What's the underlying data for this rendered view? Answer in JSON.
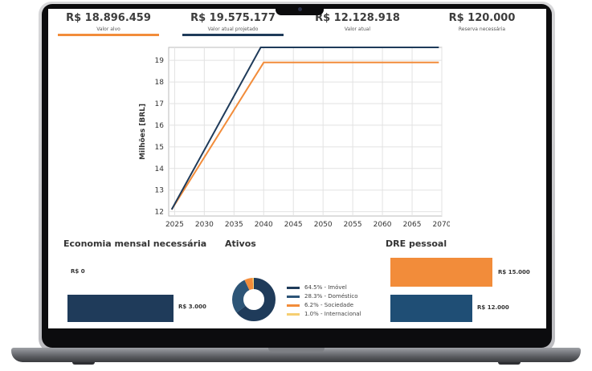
{
  "kpis": [
    {
      "value": "R$ 18.896.459",
      "label": "Valor alvo",
      "color": "#f28c3a"
    },
    {
      "value": "R$ 19.575.177",
      "label": "Valor atual projetado",
      "color": "#1f3b5a"
    },
    {
      "value": "R$ 12.128.918",
      "label": "Valor atual",
      "color": ""
    },
    {
      "value": "R$ 120.000",
      "label": "Reserva necessária",
      "color": ""
    }
  ],
  "chart_data": {
    "type": "line",
    "ylabel": "Milhões [BRL]",
    "xlim": [
      2024,
      2070
    ],
    "ylim": [
      11.8,
      19.6
    ],
    "xticks": [
      2025,
      2030,
      2035,
      2040,
      2045,
      2050,
      2055,
      2060,
      2065,
      2070
    ],
    "yticks": [
      12,
      13,
      14,
      15,
      16,
      17,
      18,
      19
    ],
    "grid": true,
    "series": [
      {
        "color": "#1f3b5a",
        "points": [
          [
            2024.5,
            12.1
          ],
          [
            2039.5,
            19.6
          ],
          [
            2069.5,
            19.6
          ]
        ]
      },
      {
        "color": "#f28c3a",
        "points": [
          [
            2024.5,
            12.1
          ],
          [
            2040,
            18.9
          ],
          [
            2069.5,
            18.9
          ]
        ]
      }
    ]
  },
  "economia": {
    "title": "Economia mensal necessária",
    "zero_label": "R$ 0",
    "bar_value": "R$ 3.000",
    "bar_color": "#1f3b5a"
  },
  "ativos": {
    "title": "Ativos",
    "items": [
      {
        "label": "64.5% - Imóvel",
        "pct": 64.5,
        "color": "#1f3b5a"
      },
      {
        "label": "28.3% - Doméstico",
        "pct": 28.3,
        "color": "#2d5577"
      },
      {
        "label": "6.2% - Sociedade",
        "pct": 6.2,
        "color": "#f28c3a"
      },
      {
        "label": "1.0% - Internacional",
        "pct": 1.0,
        "color": "#f6cf72"
      }
    ]
  },
  "dre": {
    "title": "DRE pessoal",
    "bars": [
      {
        "value": "R$ 15.000",
        "amount": 15000,
        "color": "#f28c3a"
      },
      {
        "value": "R$ 12.000",
        "amount": 12000,
        "color": "#1f4e75"
      }
    ]
  }
}
